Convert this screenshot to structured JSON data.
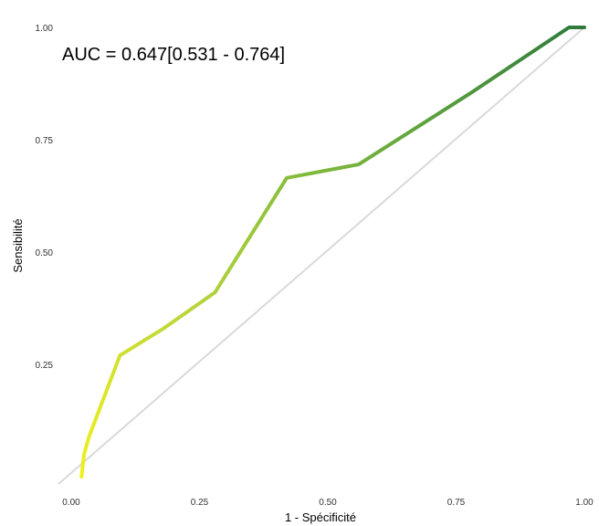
{
  "chart_data": {
    "type": "line",
    "title": "",
    "xlabel": "1 - Spécificité",
    "ylabel": "Sensibilité",
    "xlim": [
      0,
      1
    ],
    "ylim": [
      0,
      1
    ],
    "x_ticks": [
      0,
      0.25,
      0.5,
      0.75,
      1
    ],
    "x_tick_labels": [
      "0.00",
      "0.25",
      "0.50",
      "0.75",
      "1.00"
    ],
    "y_ticks": [
      0.25,
      0.5,
      0.75,
      1
    ],
    "y_tick_labels": [
      "0.25",
      "0.50",
      "0.75",
      "1.00"
    ],
    "grid": false,
    "annotation": "AUC = 0.647[0.531 - 0.764]",
    "reference_line": {
      "x": [
        0,
        1
      ],
      "y": [
        0,
        1
      ],
      "color": "#d9d9d9"
    },
    "series": [
      {
        "x": [
          0.02,
          0.025,
          0.035,
          0.095,
          0.18,
          0.28,
          0.42,
          0.56,
          0.78,
          0.97,
          1.0
        ],
        "y": [
          0.0,
          0.05,
          0.09,
          0.27,
          0.33,
          0.41,
          0.665,
          0.695,
          0.855,
          1.0,
          1.0
        ],
        "gradient": [
          "#f0f01c",
          "#c0d83a",
          "#8cc03c",
          "#59a03c",
          "#2e7a3c"
        ]
      }
    ]
  }
}
